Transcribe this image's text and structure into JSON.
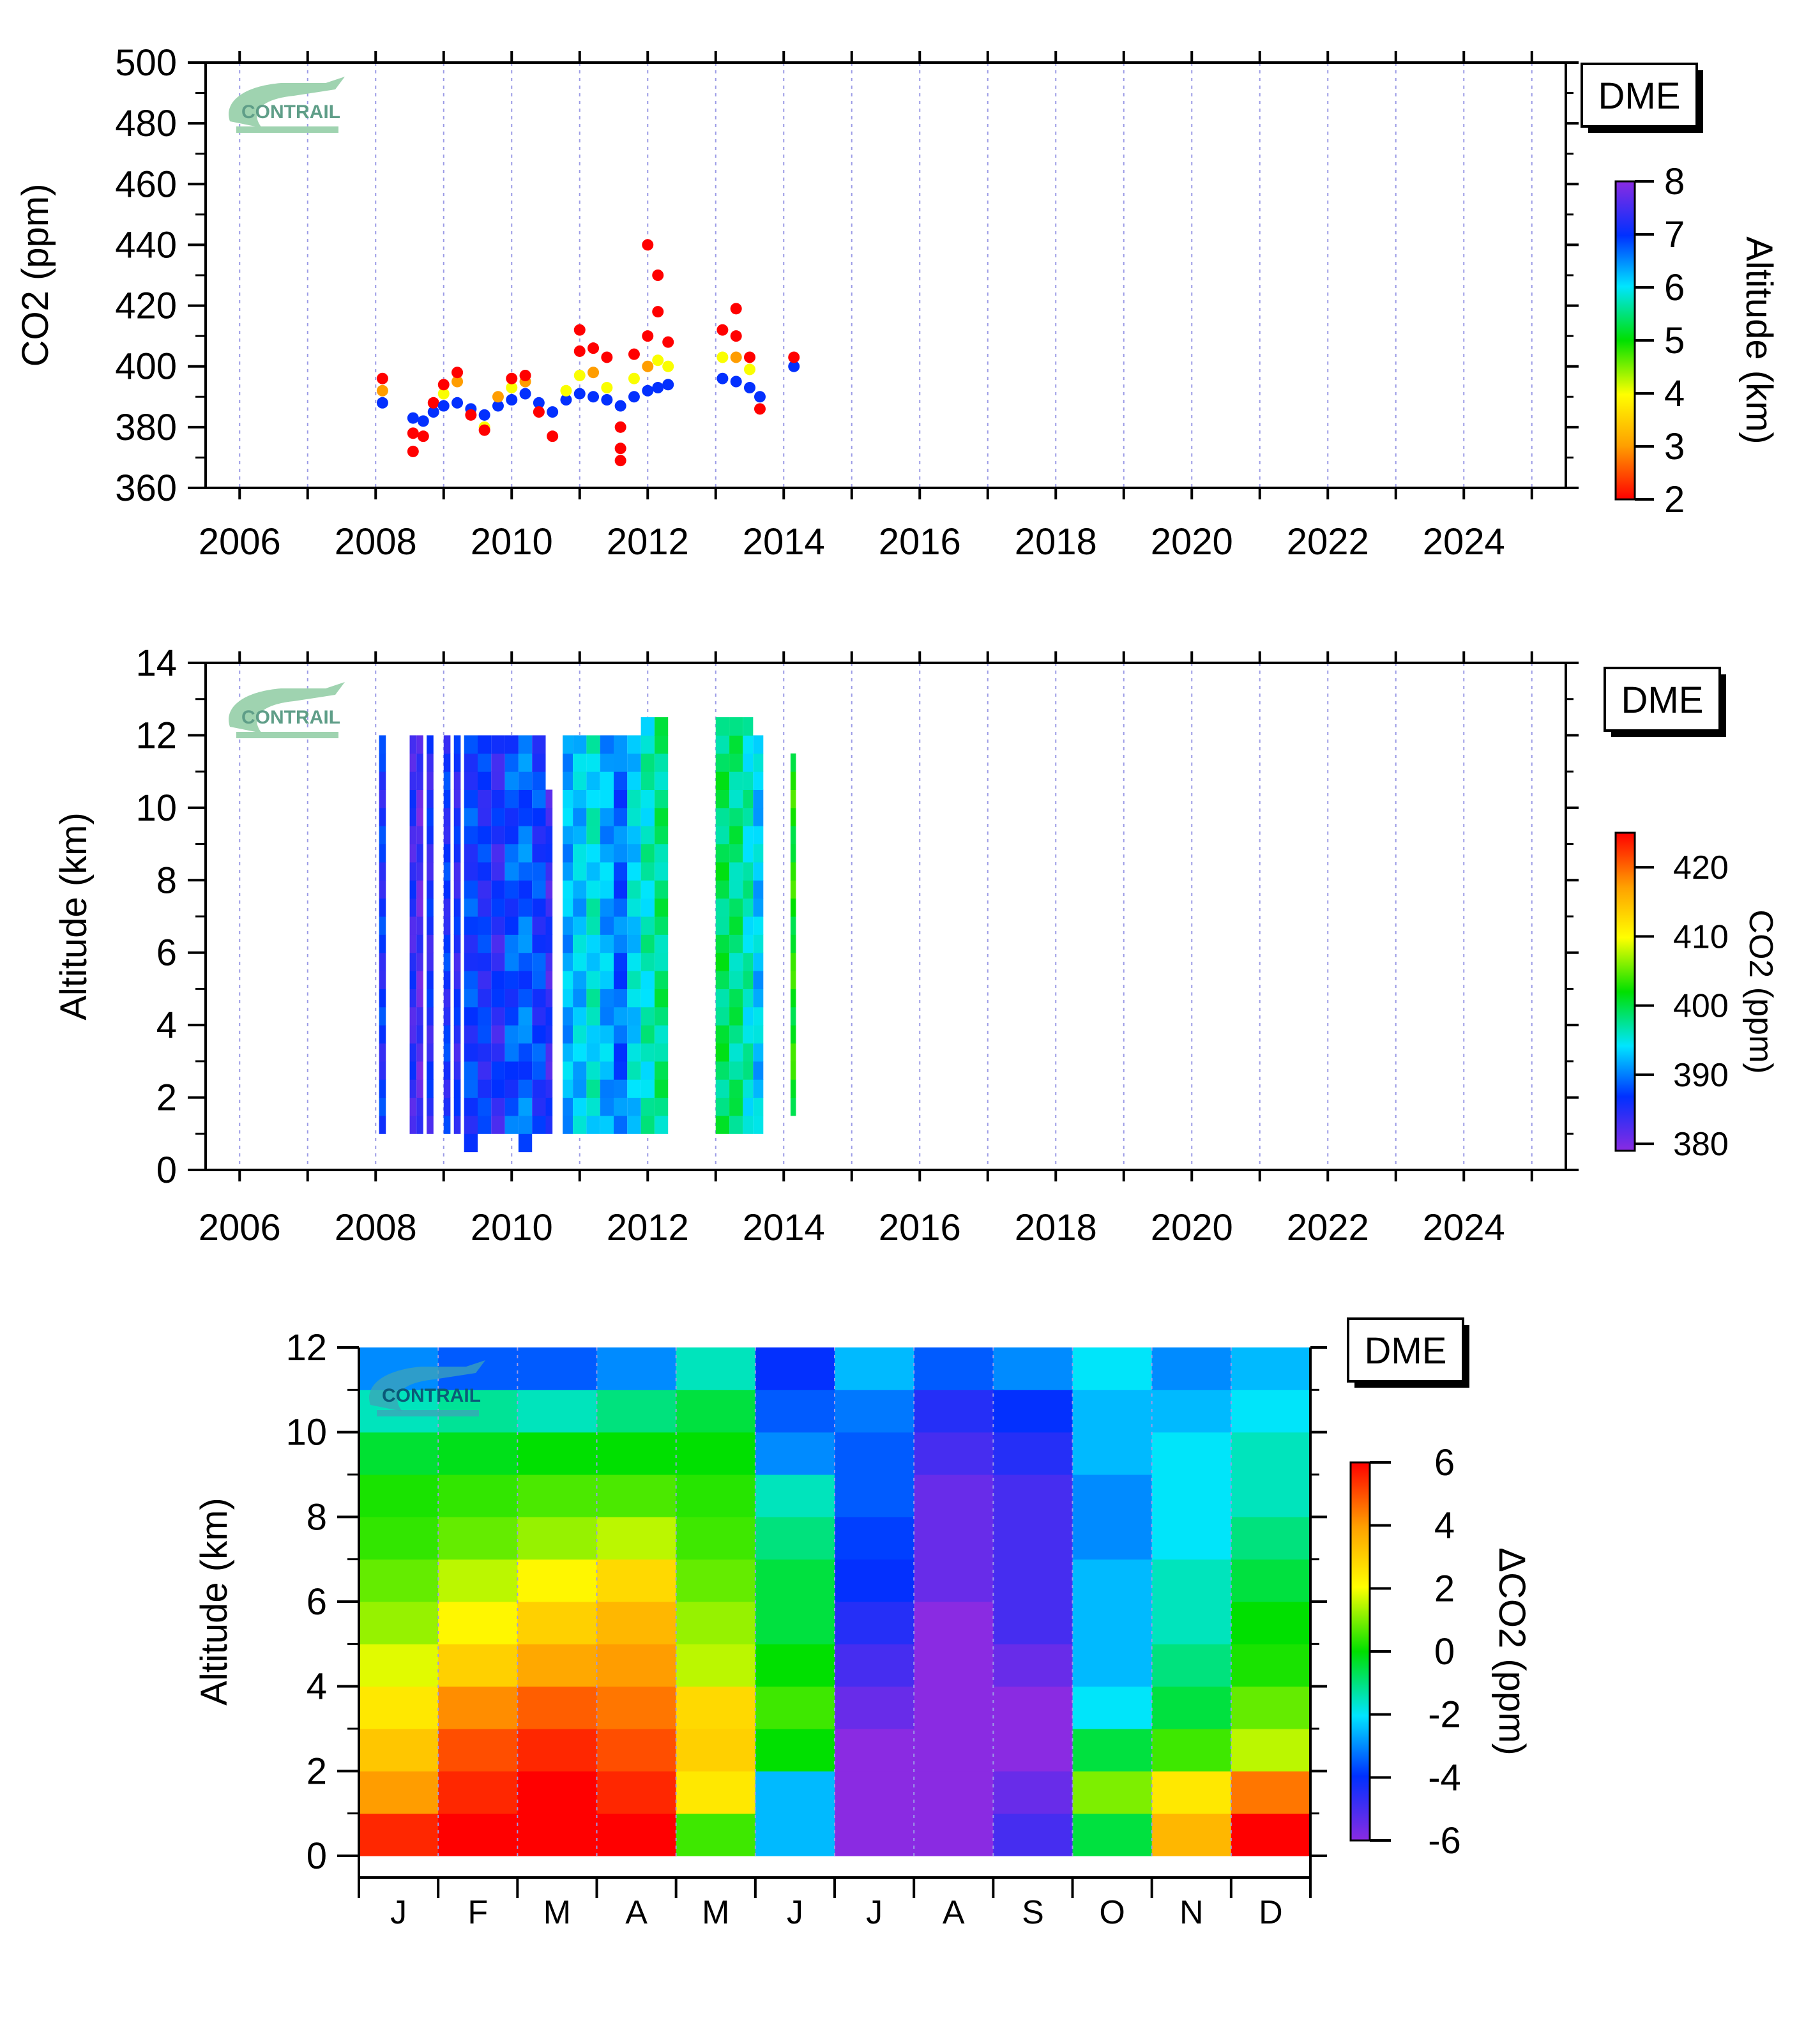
{
  "site_label": "DME",
  "logo_text": "CONTRAIL",
  "chart_data": [
    {
      "type": "scatter",
      "ylabel": "CO2 (ppm)",
      "ylim": [
        360,
        500
      ],
      "xlim": [
        2005.5,
        2025.5
      ],
      "yticks": [
        "360",
        "380",
        "400",
        "420",
        "440",
        "460",
        "480",
        "500"
      ],
      "xticks": [
        "2006",
        "2008",
        "2010",
        "2012",
        "2014",
        "2016",
        "2018",
        "2020",
        "2022",
        "2024"
      ],
      "colorbar": {
        "label": "Altitude (km)",
        "range": [
          2,
          8
        ],
        "ticks": [
          "2",
          "3",
          "4",
          "5",
          "6",
          "7",
          "8"
        ]
      },
      "grid": "vertical dotted",
      "points": [
        {
          "x": 2008.1,
          "y": 388,
          "alt": 7
        },
        {
          "x": 2008.1,
          "y": 392,
          "alt": 3
        },
        {
          "x": 2008.1,
          "y": 396,
          "alt": 2
        },
        {
          "x": 2008.55,
          "y": 383,
          "alt": 7
        },
        {
          "x": 2008.55,
          "y": 378,
          "alt": 2
        },
        {
          "x": 2008.55,
          "y": 372,
          "alt": 2
        },
        {
          "x": 2008.7,
          "y": 382,
          "alt": 7
        },
        {
          "x": 2008.7,
          "y": 377,
          "alt": 2
        },
        {
          "x": 2008.85,
          "y": 385,
          "alt": 7
        },
        {
          "x": 2008.85,
          "y": 388,
          "alt": 2
        },
        {
          "x": 2009.0,
          "y": 387,
          "alt": 7
        },
        {
          "x": 2009.0,
          "y": 391,
          "alt": 4
        },
        {
          "x": 2009.0,
          "y": 394,
          "alt": 2
        },
        {
          "x": 2009.2,
          "y": 388,
          "alt": 7
        },
        {
          "x": 2009.2,
          "y": 395,
          "alt": 3
        },
        {
          "x": 2009.2,
          "y": 398,
          "alt": 2
        },
        {
          "x": 2009.4,
          "y": 386,
          "alt": 7
        },
        {
          "x": 2009.4,
          "y": 384,
          "alt": 2
        },
        {
          "x": 2009.6,
          "y": 384,
          "alt": 7
        },
        {
          "x": 2009.6,
          "y": 380,
          "alt": 4
        },
        {
          "x": 2009.6,
          "y": 379,
          "alt": 2
        },
        {
          "x": 2009.8,
          "y": 387,
          "alt": 7
        },
        {
          "x": 2009.8,
          "y": 390,
          "alt": 3
        },
        {
          "x": 2010.0,
          "y": 389,
          "alt": 7
        },
        {
          "x": 2010.0,
          "y": 393,
          "alt": 4
        },
        {
          "x": 2010.0,
          "y": 396,
          "alt": 2
        },
        {
          "x": 2010.2,
          "y": 391,
          "alt": 7
        },
        {
          "x": 2010.2,
          "y": 395,
          "alt": 3
        },
        {
          "x": 2010.2,
          "y": 397,
          "alt": 2
        },
        {
          "x": 2010.4,
          "y": 388,
          "alt": 7
        },
        {
          "x": 2010.4,
          "y": 385,
          "alt": 2
        },
        {
          "x": 2010.6,
          "y": 385,
          "alt": 7
        },
        {
          "x": 2010.6,
          "y": 377,
          "alt": 2
        },
        {
          "x": 2010.8,
          "y": 389,
          "alt": 7
        },
        {
          "x": 2010.8,
          "y": 392,
          "alt": 4
        },
        {
          "x": 2011.0,
          "y": 391,
          "alt": 7
        },
        {
          "x": 2011.0,
          "y": 397,
          "alt": 4
        },
        {
          "x": 2011.0,
          "y": 405,
          "alt": 2
        },
        {
          "x": 2011.0,
          "y": 412,
          "alt": 2
        },
        {
          "x": 2011.2,
          "y": 390,
          "alt": 7
        },
        {
          "x": 2011.2,
          "y": 398,
          "alt": 3
        },
        {
          "x": 2011.2,
          "y": 406,
          "alt": 2
        },
        {
          "x": 2011.4,
          "y": 389,
          "alt": 7
        },
        {
          "x": 2011.4,
          "y": 393,
          "alt": 4
        },
        {
          "x": 2011.4,
          "y": 403,
          "alt": 2
        },
        {
          "x": 2011.6,
          "y": 387,
          "alt": 7
        },
        {
          "x": 2011.6,
          "y": 380,
          "alt": 2
        },
        {
          "x": 2011.6,
          "y": 373,
          "alt": 2
        },
        {
          "x": 2011.6,
          "y": 369,
          "alt": 2
        },
        {
          "x": 2011.8,
          "y": 390,
          "alt": 7
        },
        {
          "x": 2011.8,
          "y": 396,
          "alt": 4
        },
        {
          "x": 2011.8,
          "y": 404,
          "alt": 2
        },
        {
          "x": 2012.0,
          "y": 392,
          "alt": 7
        },
        {
          "x": 2012.0,
          "y": 400,
          "alt": 3
        },
        {
          "x": 2012.0,
          "y": 440,
          "alt": 2
        },
        {
          "x": 2012.0,
          "y": 410,
          "alt": 2
        },
        {
          "x": 2012.15,
          "y": 393,
          "alt": 7
        },
        {
          "x": 2012.15,
          "y": 402,
          "alt": 4
        },
        {
          "x": 2012.15,
          "y": 430,
          "alt": 2
        },
        {
          "x": 2012.15,
          "y": 418,
          "alt": 2
        },
        {
          "x": 2012.3,
          "y": 394,
          "alt": 7
        },
        {
          "x": 2012.3,
          "y": 400,
          "alt": 4
        },
        {
          "x": 2012.3,
          "y": 408,
          "alt": 2
        },
        {
          "x": 2013.1,
          "y": 396,
          "alt": 7
        },
        {
          "x": 2013.1,
          "y": 403,
          "alt": 4
        },
        {
          "x": 2013.1,
          "y": 412,
          "alt": 2
        },
        {
          "x": 2013.3,
          "y": 395,
          "alt": 7
        },
        {
          "x": 2013.3,
          "y": 403,
          "alt": 3
        },
        {
          "x": 2013.3,
          "y": 419,
          "alt": 2
        },
        {
          "x": 2013.3,
          "y": 410,
          "alt": 2
        },
        {
          "x": 2013.5,
          "y": 393,
          "alt": 7
        },
        {
          "x": 2013.5,
          "y": 399,
          "alt": 4
        },
        {
          "x": 2013.5,
          "y": 403,
          "alt": 2
        },
        {
          "x": 2013.65,
          "y": 390,
          "alt": 7
        },
        {
          "x": 2013.65,
          "y": 386,
          "alt": 2
        },
        {
          "x": 2014.15,
          "y": 400,
          "alt": 7
        },
        {
          "x": 2014.15,
          "y": 403,
          "alt": 2
        }
      ]
    },
    {
      "type": "heatmap",
      "ylabel": "Altitude (km)",
      "ylim": [
        0,
        14
      ],
      "xlim": [
        2005.5,
        2025.5
      ],
      "yticks": [
        "0",
        "2",
        "4",
        "6",
        "8",
        "10",
        "12",
        "14"
      ],
      "xticks": [
        "2006",
        "2008",
        "2010",
        "2012",
        "2014",
        "2016",
        "2018",
        "2020",
        "2022",
        "2024"
      ],
      "colorbar": {
        "label": "CO2 (ppm)",
        "range": [
          379,
          425
        ],
        "ticks": [
          "380",
          "390",
          "400",
          "410",
          "420"
        ]
      },
      "grid": "vertical dotted",
      "columns": [
        {
          "x0": 2008.05,
          "x1": 2008.15,
          "y0": 1,
          "y1": 12,
          "co2": 386
        },
        {
          "x0": 2008.5,
          "x1": 2008.6,
          "y0": 1,
          "y1": 12,
          "co2": 384
        },
        {
          "x0": 2008.6,
          "x1": 2008.7,
          "y0": 1,
          "y1": 12,
          "co2": 382
        },
        {
          "x0": 2008.75,
          "x1": 2008.85,
          "y0": 1,
          "y1": 12,
          "co2": 385
        },
        {
          "x0": 2009.0,
          "x1": 2009.1,
          "y0": 1,
          "y1": 12,
          "co2": 386
        },
        {
          "x0": 2009.15,
          "x1": 2009.25,
          "y0": 1,
          "y1": 12,
          "co2": 385
        },
        {
          "x0": 2009.3,
          "x1": 2009.5,
          "y0": 0.5,
          "y1": 12,
          "co2": 387
        },
        {
          "x0": 2009.5,
          "x1": 2009.7,
          "y0": 1,
          "y1": 12,
          "co2": 386
        },
        {
          "x0": 2009.7,
          "x1": 2009.9,
          "y0": 1,
          "y1": 12,
          "co2": 385
        },
        {
          "x0": 2009.9,
          "x1": 2010.1,
          "y0": 1,
          "y1": 12,
          "co2": 388
        },
        {
          "x0": 2010.1,
          "x1": 2010.3,
          "y0": 0.5,
          "y1": 12,
          "co2": 389
        },
        {
          "x0": 2010.3,
          "x1": 2010.5,
          "y0": 1,
          "y1": 12,
          "co2": 387
        },
        {
          "x0": 2010.5,
          "x1": 2010.6,
          "y0": 1,
          "y1": 10.5,
          "co2": 384
        },
        {
          "x0": 2010.75,
          "x1": 2010.9,
          "y0": 1,
          "y1": 12,
          "co2": 392
        },
        {
          "x0": 2010.9,
          "x1": 2011.1,
          "y0": 1,
          "y1": 12,
          "co2": 393
        },
        {
          "x0": 2011.1,
          "x1": 2011.3,
          "y0": 1,
          "y1": 12,
          "co2": 395
        },
        {
          "x0": 2011.3,
          "x1": 2011.5,
          "y0": 1,
          "y1": 12,
          "co2": 392
        },
        {
          "x0": 2011.5,
          "x1": 2011.7,
          "y0": 1,
          "y1": 12,
          "co2": 389
        },
        {
          "x0": 2011.7,
          "x1": 2011.9,
          "y0": 1,
          "y1": 12,
          "co2": 394
        },
        {
          "x0": 2011.9,
          "x1": 2012.1,
          "y0": 1,
          "y1": 12.5,
          "co2": 396
        },
        {
          "x0": 2012.1,
          "x1": 2012.3,
          "y0": 1,
          "y1": 12.5,
          "co2": 398
        },
        {
          "x0": 2013.0,
          "x1": 2013.2,
          "y0": 1,
          "y1": 12.5,
          "co2": 399
        },
        {
          "x0": 2013.2,
          "x1": 2013.4,
          "y0": 1,
          "y1": 12.5,
          "co2": 398
        },
        {
          "x0": 2013.4,
          "x1": 2013.55,
          "y0": 1,
          "y1": 12.5,
          "co2": 396
        },
        {
          "x0": 2013.55,
          "x1": 2013.7,
          "y0": 1,
          "y1": 12,
          "co2": 393
        },
        {
          "x0": 2014.1,
          "x1": 2014.18,
          "y0": 1.5,
          "y1": 11.5,
          "co2": 402
        }
      ]
    },
    {
      "type": "heatmap",
      "ylabel": "Altitude (km)",
      "ylim": [
        0,
        12
      ],
      "yticks": [
        "0",
        "2",
        "4",
        "6",
        "8",
        "10",
        "12"
      ],
      "months": [
        "J",
        "F",
        "M",
        "A",
        "M",
        "J",
        "J",
        "A",
        "S",
        "O",
        "N",
        "D"
      ],
      "colorbar": {
        "label": "ΔCO2 (ppm)",
        "range": [
          -6,
          6
        ],
        "ticks": [
          "-6",
          "-4",
          "-2",
          "0",
          "2",
          "4",
          "6"
        ]
      },
      "grid": "vertical dotted",
      "altitude_levels": [
        0.5,
        1.5,
        2.5,
        3.5,
        4.5,
        5.5,
        6.5,
        7.5,
        8.5,
        9.5,
        10.5,
        11.5
      ],
      "monthly_profile": [
        [
          5.5,
          4.0,
          3.2,
          2.5,
          1.8,
          1.2,
          0.8,
          0.4,
          0.2,
          -0.4,
          -1.5,
          -3.0
        ],
        [
          6.0,
          5.5,
          5.0,
          4.2,
          3.0,
          2.2,
          1.5,
          0.8,
          0.4,
          -0.2,
          -1.2,
          -3.5
        ],
        [
          6.0,
          6.0,
          5.5,
          4.8,
          3.8,
          3.0,
          2.2,
          1.2,
          0.6,
          0.0,
          -1.5,
          -3.5
        ],
        [
          6.0,
          5.5,
          5.0,
          4.5,
          4.0,
          3.5,
          2.8,
          1.5,
          0.6,
          0.0,
          -1.0,
          -3.0
        ],
        [
          0.5,
          2.5,
          3.0,
          2.8,
          1.5,
          1.2,
          0.8,
          0.5,
          0.3,
          0.0,
          -0.5,
          -1.5
        ],
        [
          -2.5,
          -2.5,
          0.0,
          0.5,
          0.0,
          -0.5,
          -0.5,
          -1.0,
          -1.5,
          -3.0,
          -3.5,
          -4.0
        ],
        [
          -6.0,
          -6.0,
          -6.0,
          -5.5,
          -5.0,
          -4.5,
          -4.0,
          -3.8,
          -3.5,
          -3.5,
          -3.2,
          -2.5
        ],
        [
          -6.0,
          -6.0,
          -6.0,
          -6.0,
          -6.0,
          -6.0,
          -5.5,
          -5.5,
          -5.5,
          -5.0,
          -4.5,
          -3.5
        ],
        [
          -5.0,
          -5.5,
          -6.0,
          -6.0,
          -5.5,
          -5.0,
          -5.0,
          -5.0,
          -5.0,
          -4.5,
          -4.0,
          -3.0
        ],
        [
          -0.5,
          1.0,
          -0.5,
          -2.0,
          -2.5,
          -2.5,
          -2.5,
          -3.0,
          -3.0,
          -2.5,
          -2.5,
          -2.0
        ],
        [
          3.5,
          2.5,
          0.5,
          -0.5,
          -1.0,
          -1.5,
          -1.5,
          -2.0,
          -2.0,
          -2.0,
          -2.5,
          -3.0
        ],
        [
          6.0,
          4.5,
          1.5,
          0.8,
          0.2,
          0.0,
          -0.5,
          -1.0,
          -1.5,
          -1.5,
          -2.0,
          -2.5
        ]
      ]
    }
  ]
}
